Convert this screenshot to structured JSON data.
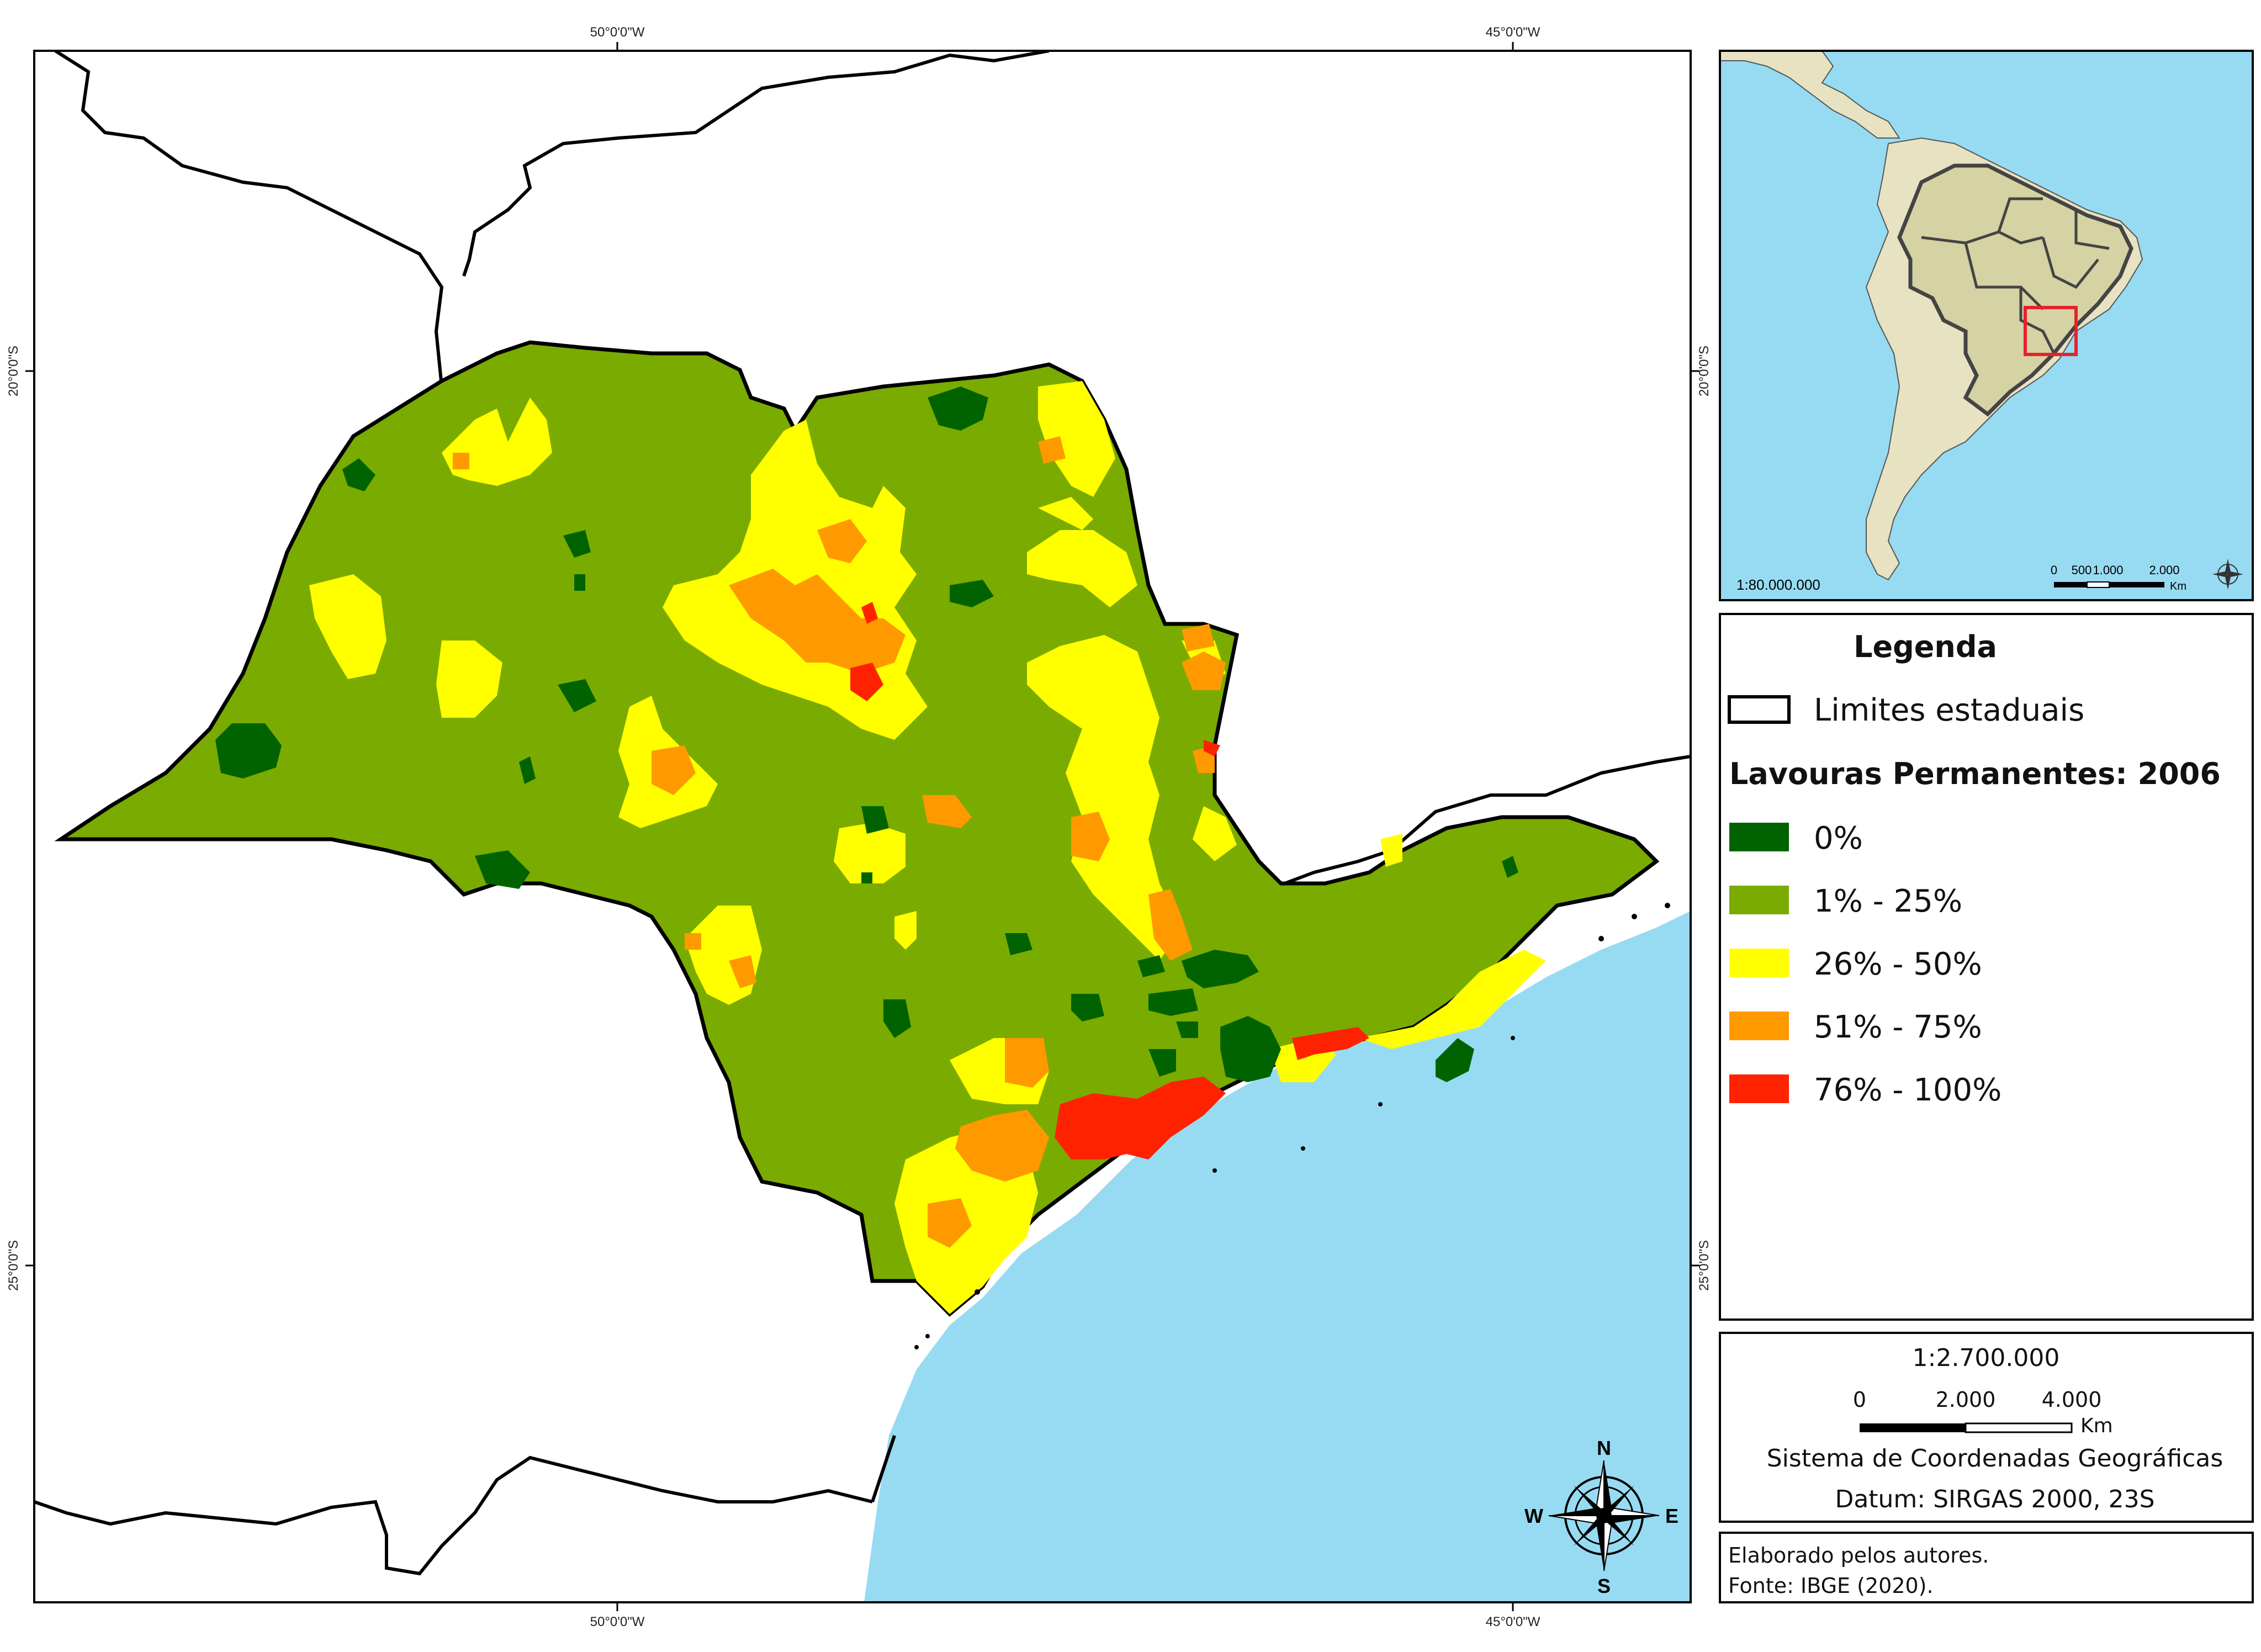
{
  "graticule": {
    "top": [
      "50°0'0\"W",
      "45°0'0\"W"
    ],
    "bottom": [
      "50°0'0\"W",
      "45°0'0\"W"
    ],
    "left": [
      "20°0'0\"S",
      "25°0'0\"S"
    ],
    "right": [
      "20°0'0\"S",
      "25°0'0\"S"
    ]
  },
  "colors": {
    "sea": "#97dbf2",
    "land_neighbour": "#ffffff",
    "class_0": "#006300",
    "class_1_25": "#7aab00",
    "class_26_50": "#ffff00",
    "class_51_75": "#ff9900",
    "class_76_100": "#ff2200",
    "inset_land": "#e6e2c2",
    "inset_brazil": "#d5d2a3",
    "inset_highlight": "#e8212b"
  },
  "compass": {
    "n": "N",
    "s": "S",
    "e": "E",
    "w": "W"
  },
  "inset": {
    "scale_text": "1:80.000.000",
    "scalebar": {
      "labels": [
        "0",
        "500",
        "1.000",
        "2.000"
      ],
      "unit": "Km"
    }
  },
  "legend": {
    "title": "Legenda",
    "boundary_label": "Limites estaduais",
    "section_title": "Lavouras Permanentes: 2006",
    "classes": [
      {
        "label": "0%",
        "color": "#006300"
      },
      {
        "label": "1% - 25%",
        "color": "#7aab00"
      },
      {
        "label": "26% - 50%",
        "color": "#ffff00"
      },
      {
        "label": "51% - 75%",
        "color": "#ff9900"
      },
      {
        "label": "76% - 100%",
        "color": "#ff2200"
      }
    ]
  },
  "scale_box": {
    "scale": "1:2.700.000",
    "bar_labels": [
      "0",
      "2.000",
      "4.000"
    ],
    "unit": "Km",
    "crs": "Sistema de Coordenadas Geográficas",
    "datum": "Datum: SIRGAS 2000, 23S"
  },
  "credits": {
    "line1": "Elaborado pelos autores.",
    "line2": "Fonte: IBGE (2020)."
  }
}
